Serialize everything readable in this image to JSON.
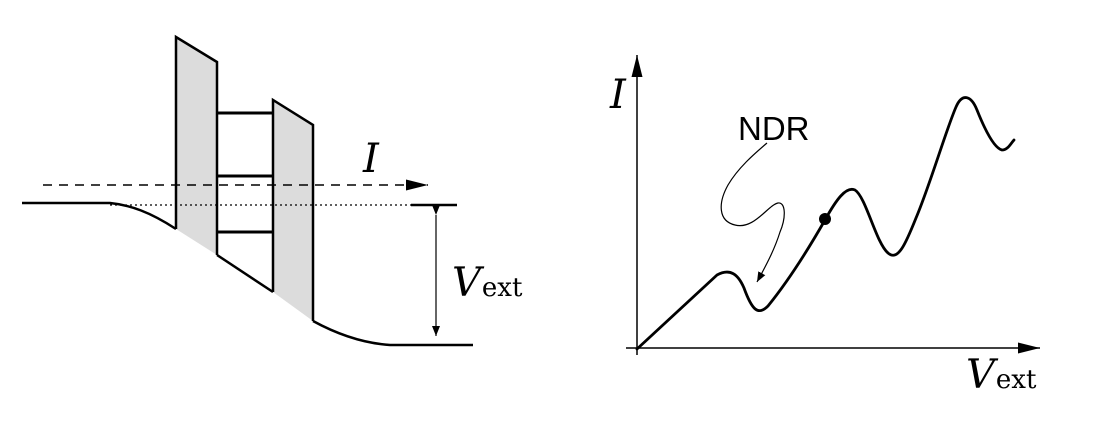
{
  "left_diagram": {
    "current_label": "I",
    "voltage_label": {
      "main": "V",
      "sub": "ext"
    }
  },
  "right_diagram": {
    "y_axis_label": "I",
    "x_axis_label": {
      "main": "V",
      "sub": "ext"
    },
    "annotation": "NDR"
  },
  "colors": {
    "line": "#000000",
    "barrier_fill": "#dcdcdc",
    "background": "#ffffff"
  }
}
